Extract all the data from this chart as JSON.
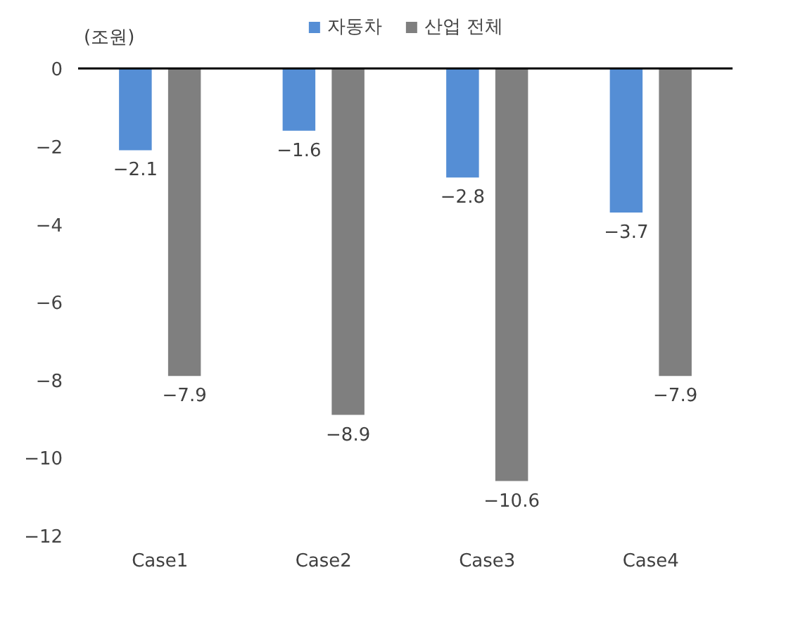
{
  "chart_data": {
    "type": "bar",
    "ylabel": "(조원)",
    "categories": [
      "Case1",
      "Case2",
      "Case3",
      "Case4"
    ],
    "series": [
      {
        "name": "자동차",
        "color": "#558ed5",
        "values": [
          -2.1,
          -1.6,
          -2.8,
          -3.7
        ],
        "value_labels": [
          "−2.1",
          "−1.6",
          "−2.8",
          "−3.7"
        ]
      },
      {
        "name": "산업 전체",
        "color": "#7f7f7f",
        "values": [
          -7.9,
          -8.9,
          -10.6,
          -7.9
        ],
        "value_labels": [
          "−7.9",
          "−8.9",
          "−10.6",
          "−7.9"
        ]
      }
    ],
    "ylim": [
      -12,
      0
    ],
    "yticks": [
      0,
      {
        "value": -2,
        "label": "−2"
      },
      {
        "value": -4,
        "label": "−4"
      },
      {
        "value": -6,
        "label": "−6"
      },
      {
        "value": -8,
        "label": "−8"
      },
      {
        "value": -10,
        "label": "−10"
      },
      {
        "value": -12,
        "label": "−12"
      }
    ],
    "grid": false,
    "legend": "top"
  }
}
